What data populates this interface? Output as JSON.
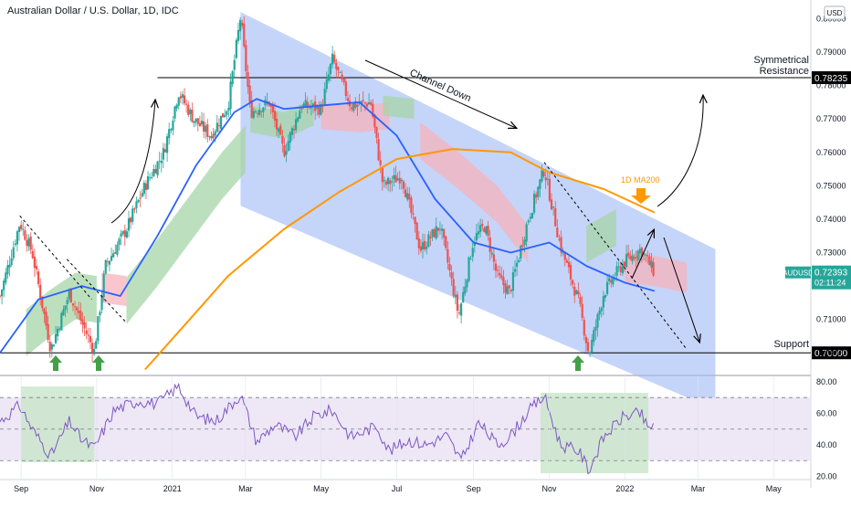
{
  "header": {
    "title": "Australian Dollar / U.S. Dollar, 1D, IDC",
    "currency": "USD"
  },
  "colors": {
    "up": "#26a69a",
    "down": "#ef5350",
    "ma_fast": "#2962ff",
    "ma200": "#ff9800",
    "channel": "#9fb8f5",
    "cloud_bull": "#a5d6a7",
    "cloud_bear": "#f5b3bb",
    "rsi": "#7e57c2",
    "rsi_band": "#ede7f6",
    "highlight": "#c8e6c9",
    "arrow_green": "#43a047",
    "last_price_bg": "#26a69a",
    "line": "#000000"
  },
  "chart_data": {
    "type": "candlestick",
    "symbol": "AUDUSD",
    "timeframe": "1D",
    "x_range": [
      "2020-08-15",
      "2022-05-31"
    ],
    "ylim": [
      0.6935,
      0.8045
    ],
    "y_ticks": [
      "0.80000",
      "0.79000",
      "0.78000",
      "0.77000",
      "0.76000",
      "0.75000",
      "0.74000",
      "0.73000",
      "0.72000",
      "0.71000",
      "0.70000"
    ],
    "x_ticks": [
      {
        "date": "2020-09-01",
        "label": "Sep"
      },
      {
        "date": "2020-11-01",
        "label": "Nov"
      },
      {
        "date": "2021-01-01",
        "label": "2021"
      },
      {
        "date": "2021-03-01",
        "label": "Mar"
      },
      {
        "date": "2021-05-01",
        "label": "May"
      },
      {
        "date": "2021-07-01",
        "label": "Jul"
      },
      {
        "date": "2021-09-01",
        "label": "Sep"
      },
      {
        "date": "2021-11-01",
        "label": "Nov"
      },
      {
        "date": "2022-01-01",
        "label": "2022"
      },
      {
        "date": "2022-03-01",
        "label": "Mar"
      },
      {
        "date": "2022-05-01",
        "label": "May"
      }
    ],
    "price_path": [
      [
        "2020-08-15",
        0.717
      ],
      [
        "2020-08-31",
        0.739
      ],
      [
        "2020-09-10",
        0.73
      ],
      [
        "2020-09-25",
        0.701
      ],
      [
        "2020-10-10",
        0.718
      ],
      [
        "2020-10-20",
        0.709
      ],
      [
        "2020-10-30",
        0.7005
      ],
      [
        "2020-11-08",
        0.726
      ],
      [
        "2020-11-25",
        0.737
      ],
      [
        "2020-12-10",
        0.75
      ],
      [
        "2020-12-25",
        0.76
      ],
      [
        "2021-01-06",
        0.778
      ],
      [
        "2021-01-18",
        0.77
      ],
      [
        "2021-02-01",
        0.765
      ],
      [
        "2021-02-15",
        0.774
      ],
      [
        "2021-02-25",
        0.8007
      ],
      [
        "2021-03-05",
        0.772
      ],
      [
        "2021-03-20",
        0.775
      ],
      [
        "2021-04-01",
        0.76
      ],
      [
        "2021-04-15",
        0.774
      ],
      [
        "2021-05-01",
        0.773
      ],
      [
        "2021-05-10",
        0.788
      ],
      [
        "2021-05-25",
        0.774
      ],
      [
        "2021-06-10",
        0.775
      ],
      [
        "2021-06-20",
        0.75
      ],
      [
        "2021-07-05",
        0.753
      ],
      [
        "2021-07-20",
        0.731
      ],
      [
        "2021-08-05",
        0.738
      ],
      [
        "2021-08-20",
        0.711
      ],
      [
        "2021-09-01",
        0.734
      ],
      [
        "2021-09-10",
        0.738
      ],
      [
        "2021-09-20",
        0.723
      ],
      [
        "2021-09-30",
        0.718
      ],
      [
        "2021-10-15",
        0.74
      ],
      [
        "2021-10-28",
        0.755
      ],
      [
        "2021-11-10",
        0.732
      ],
      [
        "2021-11-25",
        0.715
      ],
      [
        "2021-12-03",
        0.6995
      ],
      [
        "2021-12-15",
        0.718
      ],
      [
        "2021-12-31",
        0.727
      ],
      [
        "2022-01-14",
        0.731
      ],
      [
        "2022-01-25",
        0.7239
      ]
    ],
    "ma_fast": [
      [
        "2020-08-15",
        0.7
      ],
      [
        "2020-09-15",
        0.716
      ],
      [
        "2020-10-20",
        0.72
      ],
      [
        "2020-11-20",
        0.717
      ],
      [
        "2020-12-20",
        0.735
      ],
      [
        "2021-01-20",
        0.756
      ],
      [
        "2021-02-20",
        0.772
      ],
      [
        "2021-03-10",
        0.776
      ],
      [
        "2021-04-01",
        0.773
      ],
      [
        "2021-05-01",
        0.774
      ],
      [
        "2021-06-01",
        0.775
      ],
      [
        "2021-07-01",
        0.765
      ],
      [
        "2021-08-01",
        0.746
      ],
      [
        "2021-09-01",
        0.733
      ],
      [
        "2021-10-01",
        0.73
      ],
      [
        "2021-11-01",
        0.733
      ],
      [
        "2021-12-01",
        0.726
      ],
      [
        "2022-01-01",
        0.721
      ],
      [
        "2022-01-25",
        0.7185
      ]
    ],
    "ma200": [
      [
        "2020-12-10",
        0.695
      ],
      [
        "2021-01-15",
        0.71
      ],
      [
        "2021-02-15",
        0.723
      ],
      [
        "2021-04-01",
        0.737
      ],
      [
        "2021-05-15",
        0.748
      ],
      [
        "2021-07-01",
        0.758
      ],
      [
        "2021-08-15",
        0.761
      ],
      [
        "2021-10-01",
        0.76
      ],
      [
        "2021-11-01",
        0.754
      ],
      [
        "2021-12-15",
        0.749
      ],
      [
        "2022-01-25",
        0.742
      ]
    ],
    "channel_down": {
      "upper": [
        [
          "2021-02-25",
          0.802
        ],
        [
          "2022-03-15",
          0.731
        ]
      ],
      "lower": [
        [
          "2021-02-25",
          0.744
        ],
        [
          "2022-03-15",
          0.683
        ]
      ],
      "label": "Channel Down"
    },
    "horizontal_levels": [
      {
        "value": 0.78235,
        "label": "Symmetrical\nResistance",
        "tag": "0.78235",
        "from": "2020-12-20"
      },
      {
        "value": 0.7,
        "label": "Support",
        "tag": "0.70000",
        "from": "2020-08-15"
      }
    ],
    "last_price": {
      "symbol": "AUDUSD",
      "value": "0.72393",
      "countdown": "02:11:24"
    },
    "annotations": {
      "ma200_label": "1D MA200"
    },
    "rsi": {
      "ylim": [
        18,
        84
      ],
      "y_ticks": [
        "80.00",
        "60.00",
        "40.00",
        "20.00"
      ],
      "band": [
        30,
        70
      ],
      "mid": 50,
      "path": [
        [
          "2020-08-15",
          55
        ],
        [
          "2020-08-31",
          65
        ],
        [
          "2020-09-10",
          50
        ],
        [
          "2020-09-25",
          33
        ],
        [
          "2020-10-10",
          55
        ],
        [
          "2020-10-20",
          43
        ],
        [
          "2020-10-30",
          38
        ],
        [
          "2020-11-15",
          62
        ],
        [
          "2020-12-05",
          68
        ],
        [
          "2020-12-20",
          66
        ],
        [
          "2021-01-06",
          77
        ],
        [
          "2021-01-20",
          58
        ],
        [
          "2021-02-05",
          55
        ],
        [
          "2021-02-25",
          72
        ],
        [
          "2021-03-10",
          42
        ],
        [
          "2021-03-25",
          53
        ],
        [
          "2021-04-10",
          45
        ],
        [
          "2021-04-25",
          58
        ],
        [
          "2021-05-10",
          62
        ],
        [
          "2021-05-25",
          45
        ],
        [
          "2021-06-15",
          52
        ],
        [
          "2021-06-25",
          36
        ],
        [
          "2021-07-10",
          43
        ],
        [
          "2021-07-25",
          40
        ],
        [
          "2021-08-10",
          46
        ],
        [
          "2021-08-22",
          30
        ],
        [
          "2021-09-05",
          54
        ],
        [
          "2021-09-20",
          40
        ],
        [
          "2021-09-30",
          45
        ],
        [
          "2021-10-15",
          61
        ],
        [
          "2021-10-28",
          71
        ],
        [
          "2021-11-10",
          40
        ],
        [
          "2021-11-25",
          36
        ],
        [
          "2021-12-03",
          24
        ],
        [
          "2021-12-15",
          45
        ],
        [
          "2021-12-31",
          58
        ],
        [
          "2022-01-14",
          60
        ],
        [
          "2022-01-20",
          49
        ],
        [
          "2022-01-25",
          55
        ]
      ]
    }
  }
}
